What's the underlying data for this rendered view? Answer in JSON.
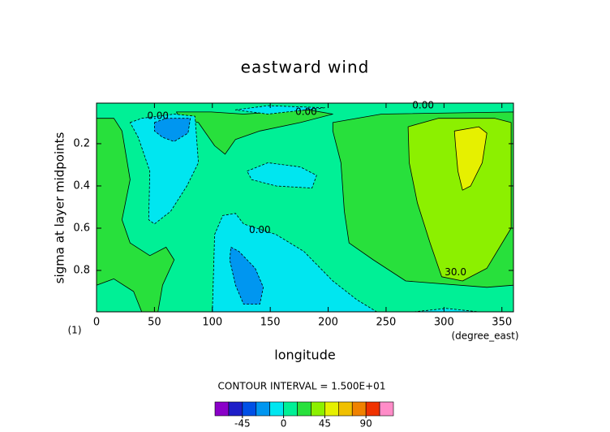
{
  "chart_data": {
    "type": "contour",
    "title": "eastward wind",
    "x_label": "longitude",
    "y_label": "sigma at layer midpoints",
    "x_unit": "(degree_east)",
    "corner_label": "(1)",
    "xlim": [
      0,
      360
    ],
    "xticks": [
      0,
      50,
      100,
      150,
      200,
      250,
      300,
      350
    ],
    "ylim": [
      0.996,
      0.008
    ],
    "yticks": [
      0.2,
      0.4,
      0.6,
      0.8
    ],
    "background_level": 0,
    "regions": [
      {
        "level": 15,
        "lon": [
          0,
          15,
          22,
          29,
          22,
          29,
          46,
          60,
          67,
          57,
          53,
          39,
          32,
          15,
          0
        ],
        "sigma": [
          0.08,
          0.08,
          0.14,
          0.37,
          0.56,
          0.67,
          0.73,
          0.69,
          0.75,
          0.87,
          0.996,
          0.996,
          0.9,
          0.84,
          0.87
        ]
      },
      {
        "level": 15,
        "lon": [
          69,
          99,
          127,
          183,
          204,
          176,
          141,
          120,
          111,
          102,
          88,
          72
        ],
        "sigma": [
          0.05,
          0.05,
          0.06,
          0.04,
          0.06,
          0.1,
          0.14,
          0.18,
          0.25,
          0.21,
          0.1,
          0.08
        ]
      },
      {
        "level": 15,
        "lon": [
          204,
          246,
          360,
          360,
          337,
          267,
          239,
          218,
          214,
          211,
          204
        ],
        "sigma": [
          0.1,
          0.06,
          0.05,
          0.87,
          0.88,
          0.85,
          0.75,
          0.67,
          0.52,
          0.29,
          0.14
        ]
      },
      {
        "level": -15,
        "lon": [
          29,
          39,
          67,
          85,
          88,
          78,
          64,
          50,
          45,
          46,
          36
        ],
        "sigma": [
          0.1,
          0.08,
          0.06,
          0.07,
          0.29,
          0.4,
          0.52,
          0.58,
          0.56,
          0.33,
          0.17
        ]
      },
      {
        "level": -15,
        "lon": [
          120,
          148,
          197,
          148
        ],
        "sigma": [
          0.04,
          0.02,
          0.03,
          0.06
        ]
      },
      {
        "level": -15,
        "lon": [
          130,
          148,
          176,
          190,
          186,
          155,
          134
        ],
        "sigma": [
          0.33,
          0.29,
          0.31,
          0.35,
          0.41,
          0.4,
          0.37
        ]
      },
      {
        "level": -15,
        "lon": [
          100,
          102,
          109,
          120,
          127,
          155,
          179,
          204,
          225,
          242
        ],
        "sigma": [
          0.996,
          0.63,
          0.54,
          0.53,
          0.58,
          0.63,
          0.71,
          0.85,
          0.94,
          0.996
        ]
      },
      {
        "level": -15,
        "lon": [
          274,
          302,
          330
        ],
        "sigma": [
          0.996,
          0.98,
          0.996
        ]
      },
      {
        "level": -30,
        "lon": [
          50,
          60,
          81,
          79,
          67,
          57,
          50
        ],
        "sigma": [
          0.1,
          0.08,
          0.08,
          0.15,
          0.19,
          0.17,
          0.14
        ]
      },
      {
        "level": -30,
        "lon": [
          116,
          123,
          137,
          144,
          141,
          127,
          120,
          115
        ],
        "sigma": [
          0.69,
          0.71,
          0.79,
          0.88,
          0.96,
          0.96,
          0.87,
          0.75
        ]
      },
      {
        "level": 30,
        "lon": [
          269,
          295,
          344,
          358,
          358,
          337,
          316,
          298,
          288,
          277,
          270
        ],
        "sigma": [
          0.12,
          0.08,
          0.08,
          0.1,
          0.6,
          0.79,
          0.85,
          0.83,
          0.67,
          0.48,
          0.29
        ]
      },
      {
        "level": 45,
        "lon": [
          309,
          330,
          337,
          333,
          323,
          316,
          312,
          310
        ],
        "sigma": [
          0.14,
          0.12,
          0.15,
          0.29,
          0.4,
          0.42,
          0.33,
          0.21
        ]
      }
    ],
    "contour_labels": [
      {
        "text": "0.00",
        "lon": 53,
        "sigma": 0.07
      },
      {
        "text": "0.00",
        "lon": 181,
        "sigma": 0.05
      },
      {
        "text": "0.00",
        "lon": 282,
        "sigma": 0.02
      },
      {
        "text": "0.00",
        "lon": 141,
        "sigma": 0.61
      },
      {
        "text": "30.0",
        "lon": 310,
        "sigma": 0.81
      }
    ],
    "contour_interval": "CONTOUR INTERVAL = 1.500E+01",
    "colorbar": {
      "lim": [
        -75,
        120
      ],
      "boundaries": [
        -75,
        -60,
        -45,
        -30,
        -15,
        0,
        15,
        30,
        45,
        60,
        75,
        90,
        105,
        120
      ],
      "colors": [
        "#8a00c8",
        "#1e1ec8",
        "#0050e6",
        "#0096f0",
        "#00e6f0",
        "#00f096",
        "#28e03c",
        "#8cf000",
        "#e6f000",
        "#f0c000",
        "#f08200",
        "#f03200",
        "#ff8cc8"
      ],
      "ticks": [
        -45,
        0,
        45,
        90
      ]
    }
  }
}
